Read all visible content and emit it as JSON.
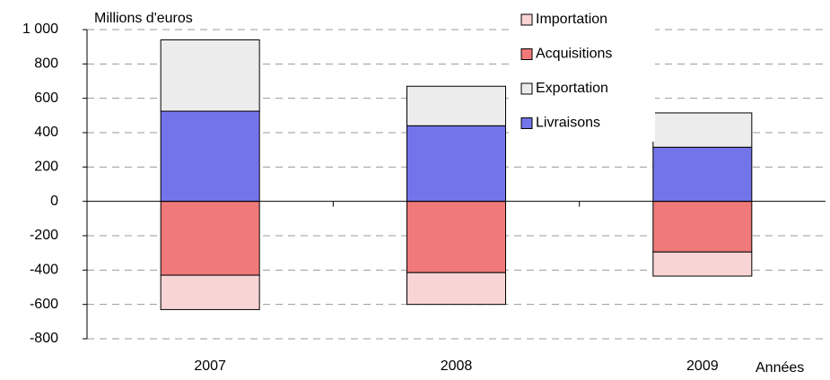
{
  "chart_data": {
    "type": "stacked-bar",
    "y_label": "Millions d'euros",
    "x_label": "Années",
    "categories": [
      "2007",
      "2008",
      "2009"
    ],
    "series": [
      {
        "name": "Importation",
        "color": "#f9d4d4",
        "values": [
          -200,
          -185,
          -140
        ]
      },
      {
        "name": "Acquisitions",
        "color": "#f07a7a",
        "values": [
          -430,
          -415,
          -295
        ]
      },
      {
        "name": "Exportation",
        "color": "#ececec",
        "values": [
          415,
          230,
          200
        ]
      },
      {
        "name": "Livraisons",
        "color": "#7474ea",
        "values": [
          525,
          440,
          315
        ]
      }
    ],
    "ylim": [
      -800,
      1000
    ],
    "yticks": [
      -800,
      -600,
      -400,
      -200,
      0,
      200,
      400,
      600,
      800,
      {
        "value": 1000,
        "label": "1 000"
      }
    ],
    "grid": true
  }
}
